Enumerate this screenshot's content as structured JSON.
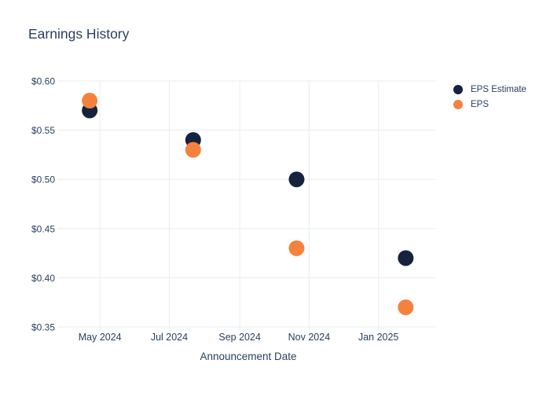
{
  "chart_data": {
    "type": "scatter",
    "title": "Earnings History",
    "xlabel": "Announcement Date",
    "ylabel": "",
    "x": [
      "2024-04-22",
      "2024-07-22",
      "2024-10-21",
      "2025-01-25"
    ],
    "series": [
      {
        "name": "EPS Estimate",
        "color": "#15233f",
        "values": [
          0.57,
          0.54,
          0.5,
          0.42
        ]
      },
      {
        "name": "EPS",
        "color": "#f5823c",
        "values": [
          0.58,
          0.53,
          0.43,
          0.37
        ]
      }
    ],
    "x_ticks": [
      {
        "date": "2024-05-01",
        "label": "May 2024"
      },
      {
        "date": "2024-07-01",
        "label": "Jul 2024"
      },
      {
        "date": "2024-09-01",
        "label": "Sep 2024"
      },
      {
        "date": "2024-11-01",
        "label": "Nov 2024"
      },
      {
        "date": "2025-01-01",
        "label": "Jan 2025"
      }
    ],
    "y_ticks": [
      {
        "value": 0.6,
        "label": "$0.60"
      },
      {
        "value": 0.55,
        "label": "$0.55"
      },
      {
        "value": 0.5,
        "label": "$0.50"
      },
      {
        "value": 0.45,
        "label": "$0.45"
      },
      {
        "value": 0.4,
        "label": "$0.40"
      },
      {
        "value": 0.35,
        "label": "$0.35"
      }
    ],
    "xlim": [
      "2024-03-28",
      "2025-02-20"
    ],
    "ylim": [
      0.35,
      0.6
    ],
    "grid": true,
    "legend_position": "right",
    "marker_diameter_px": 20,
    "colors": {
      "grid": "#e8edf3",
      "text": "#2a3f5f",
      "background": "#ffffff"
    }
  }
}
